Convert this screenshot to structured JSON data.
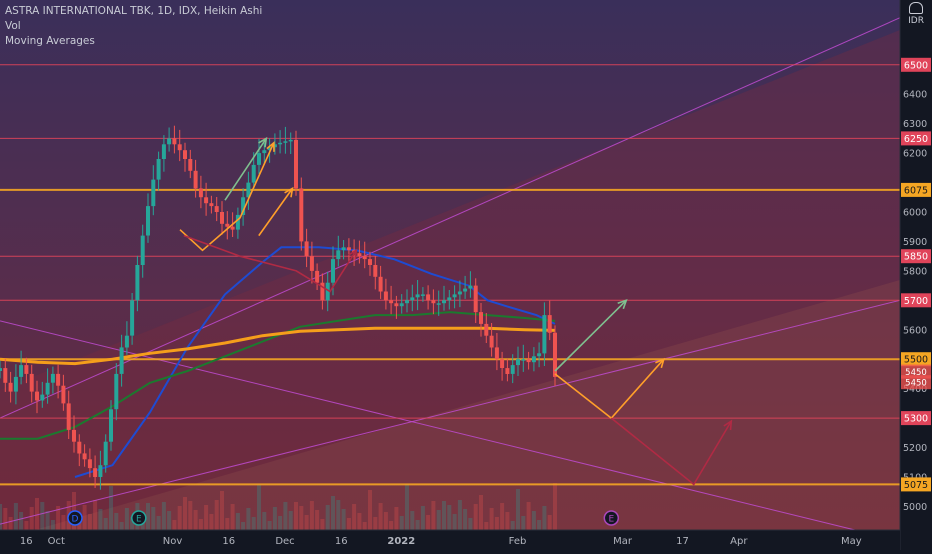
{
  "header": {
    "title": "ASTRA INTERNATIONAL TBK, 1D, IDX, Heikin Ashi",
    "vol_label": "Vol",
    "ma_label": "Moving Averages",
    "currency": "IDR"
  },
  "colors": {
    "bg_top": "#3a2f5a",
    "bg_mid": "#5a2f4a",
    "bg_bottom": "#6a2a3a",
    "up": "#26a69a",
    "down": "#ef5350",
    "ma_blue": "#1e4bd2",
    "ma_green": "#1b7a2e",
    "ma_orange": "#f59e1b",
    "level_red": "#e0445a",
    "level_orange": "#f5a623",
    "channel": "#c04bd1",
    "arrow_orange": "#ff9f2a",
    "arrow_green": "#7fbf8f",
    "arrow_red": "#b02a44"
  },
  "chart_data": {
    "type": "candlestick",
    "title": "ASTRA INTERNATIONAL TBK, 1D, IDX, Heikin Ashi",
    "ylim": [
      4920,
      6720
    ],
    "y_ticks": [
      5000,
      5100,
      5200,
      5400,
      5600,
      5800,
      5900,
      6000,
      6200,
      6300,
      6400
    ],
    "x_ticks": [
      "16",
      "Oct",
      "Nov",
      "16",
      "Dec",
      "16",
      "2022",
      "Feb",
      "Mar",
      "17",
      "Apr",
      "May"
    ],
    "x_tick_days": [
      -8,
      0,
      31,
      46,
      61,
      76,
      92,
      123,
      151,
      167,
      182,
      212
    ],
    "x_range_days": [
      -15,
      225
    ],
    "levels": [
      {
        "label": "6500",
        "value": 6500,
        "kind": "red"
      },
      {
        "label": "6250",
        "value": 6250,
        "kind": "red"
      },
      {
        "label": "6075",
        "value": 6075,
        "kind": "orange"
      },
      {
        "label": "5850",
        "value": 5850,
        "kind": "red"
      },
      {
        "label": "5700",
        "value": 5700,
        "kind": "red"
      },
      {
        "label": "5500",
        "value": 5500,
        "kind": "orange"
      },
      {
        "label": "5300",
        "value": 5300,
        "kind": "red"
      },
      {
        "label": "5075",
        "value": 5075,
        "kind": "orange"
      }
    ],
    "price_tags": [
      {
        "label": "5450",
        "value": 5458
      },
      {
        "label": "5450",
        "value": 5422
      }
    ],
    "closes": [
      5470,
      5420,
      5390,
      5440,
      5480,
      5450,
      5390,
      5360,
      5380,
      5420,
      5450,
      5410,
      5350,
      5260,
      5220,
      5180,
      5160,
      5130,
      5100,
      5140,
      5220,
      5330,
      5450,
      5540,
      5580,
      5700,
      5820,
      5920,
      6020,
      6110,
      6180,
      6230,
      6250,
      6230,
      6210,
      6180,
      6140,
      6080,
      6050,
      6030,
      6020,
      6000,
      5960,
      5950,
      5940,
      5990,
      6050,
      6100,
      6160,
      6200,
      6210,
      6220,
      6230,
      6235,
      6240,
      6245,
      6080,
      5900,
      5850,
      5800,
      5760,
      5700,
      5760,
      5840,
      5870,
      5880,
      5870,
      5860,
      5850,
      5840,
      5820,
      5780,
      5730,
      5700,
      5690,
      5680,
      5690,
      5700,
      5710,
      5720,
      5720,
      5700,
      5690,
      5690,
      5700,
      5710,
      5720,
      5730,
      5740,
      5750,
      5660,
      5620,
      5580,
      5540,
      5500,
      5470,
      5450,
      5480,
      5500,
      5500,
      5490,
      5510,
      5520,
      5650,
      5590,
      5440
    ],
    "series": [
      {
        "name": "MA blue",
        "days": [
          5,
          15,
          25,
          35,
          45,
          55,
          60,
          70,
          80,
          90,
          100,
          110,
          115,
          120,
          128,
          133
        ],
        "values": [
          5100,
          5140,
          5320,
          5540,
          5720,
          5830,
          5880,
          5880,
          5870,
          5840,
          5790,
          5750,
          5700,
          5680,
          5650,
          5620
        ]
      },
      {
        "name": "MA green",
        "days": [
          -15,
          -5,
          5,
          15,
          25,
          35,
          45,
          55,
          65,
          75,
          85,
          95,
          105,
          115,
          125,
          133
        ],
        "values": [
          5230,
          5230,
          5270,
          5340,
          5420,
          5460,
          5510,
          5560,
          5610,
          5630,
          5650,
          5650,
          5660,
          5650,
          5640,
          5630
        ]
      },
      {
        "name": "MA orange",
        "days": [
          -15,
          -5,
          5,
          15,
          25,
          35,
          45,
          55,
          65,
          75,
          85,
          95,
          105,
          115,
          125,
          133
        ],
        "values": [
          5500,
          5490,
          5485,
          5500,
          5520,
          5535,
          5555,
          5580,
          5595,
          5600,
          5605,
          5605,
          5605,
          5605,
          5600,
          5598
        ]
      }
    ],
    "channel_lines": [
      {
        "days": [
          -15,
          225
        ],
        "values": [
          5300,
          6660
        ]
      },
      {
        "days": [
          -15,
          225
        ],
        "values": [
          4940,
          5700
        ]
      },
      {
        "days": [
          -15,
          213
        ],
        "values": [
          5630,
          4920
        ]
      }
    ],
    "arrows": [
      {
        "color": "arrow_orange",
        "days": [
          33,
          39,
          49,
          58
        ],
        "values": [
          5940,
          5870,
          5980,
          6235
        ]
      },
      {
        "color": "arrow_orange",
        "days": [
          54,
          63
        ],
        "values": [
          5920,
          6080
        ]
      },
      {
        "color": "arrow_red",
        "days": [
          34,
          49,
          64,
          73,
          80
        ],
        "values": [
          5920,
          5850,
          5800,
          5730,
          5870
        ]
      },
      {
        "color": "arrow_green",
        "days": [
          45,
          56
        ],
        "values": [
          6040,
          6250
        ]
      },
      {
        "color": "arrow_orange",
        "days": [
          133,
          148,
          162
        ],
        "values": [
          5450,
          5300,
          5500
        ]
      },
      {
        "color": "arrow_red",
        "days": [
          148,
          170,
          180
        ],
        "values": [
          5300,
          5075,
          5290
        ]
      },
      {
        "color": "arrow_green",
        "days": [
          133,
          152
        ],
        "values": [
          5460,
          5700
        ]
      }
    ],
    "event_markers": [
      {
        "label": "D",
        "day": 5,
        "color": "#2962ff"
      },
      {
        "label": "E",
        "day": 22,
        "color": "#26a69a"
      },
      {
        "label": "E",
        "day": 148,
        "color": "#ab47bc"
      }
    ]
  }
}
